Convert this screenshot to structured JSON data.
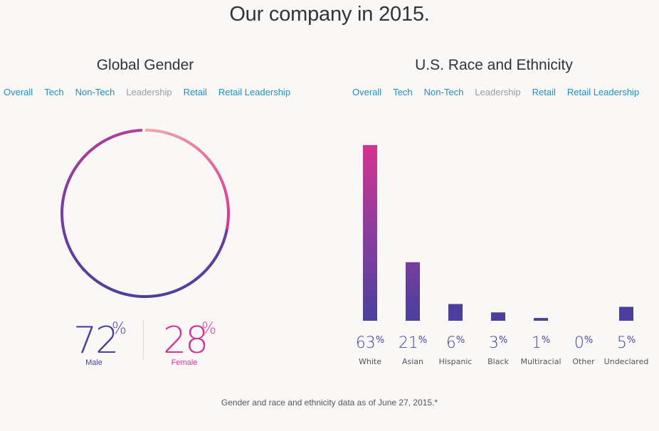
{
  "page": {
    "title": "Our company in 2015.",
    "footnote": "Gender and race and ethnicity data as of June 27, 2015.*"
  },
  "gender": {
    "title": "Global Gender",
    "tabs": [
      {
        "label": "Overall",
        "active": true
      },
      {
        "label": "Tech",
        "active": true
      },
      {
        "label": "Non-Tech",
        "active": true
      },
      {
        "label": "Leadership",
        "active": false
      },
      {
        "label": "Retail",
        "active": true
      },
      {
        "label": "Retail Leadership",
        "active": true
      }
    ],
    "male": {
      "value": "72",
      "symbol": "%",
      "label": "Male",
      "color": "#4c3f9c"
    },
    "female": {
      "value": "28",
      "symbol": "%",
      "label": "Female",
      "color": "#d53394"
    }
  },
  "race": {
    "title": "U.S. Race and Ethnicity",
    "tabs": [
      {
        "label": "Overall",
        "active": true
      },
      {
        "label": "Tech",
        "active": true
      },
      {
        "label": "Non-Tech",
        "active": true
      },
      {
        "label": "Leadership",
        "active": false
      },
      {
        "label": "Retail",
        "active": true
      },
      {
        "label": "Retail Leadership",
        "active": true
      }
    ]
  },
  "colors": {
    "link": "#1a8fc4",
    "inactive_tab": "#9b9b9b",
    "purple": "#4c3f9c",
    "magenta": "#d53394",
    "pink_light": "#f0aaa8"
  },
  "chart_data": [
    {
      "type": "pie",
      "title": "Global Gender",
      "categories": [
        "Male",
        "Female"
      ],
      "values": [
        72,
        28
      ],
      "style": "donut-ring"
    },
    {
      "type": "bar",
      "title": "U.S. Race and Ethnicity",
      "categories": [
        "White",
        "Asian",
        "Hispanic",
        "Black",
        "Multiracial",
        "Other",
        "Undeclared"
      ],
      "values": [
        63,
        21,
        6,
        3,
        1,
        0,
        5
      ],
      "value_suffix": "%"
    }
  ]
}
